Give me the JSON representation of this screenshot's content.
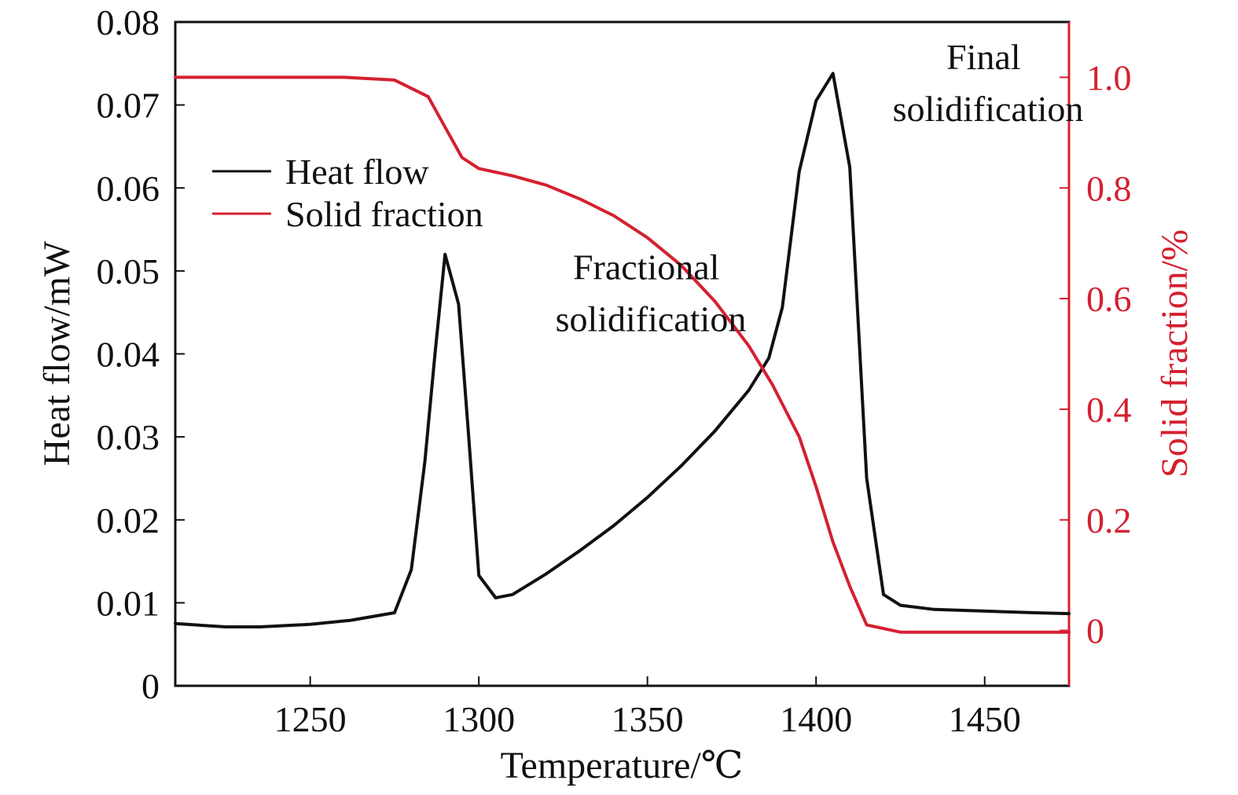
{
  "colors": {
    "heat_flow": "#111111",
    "solid_fraction": "#d42030",
    "axis": "#111111",
    "right_axis": "#d42030"
  },
  "chart_data": {
    "type": "line",
    "title": "",
    "xlabel": "Temperature/℃",
    "ylabel": "Heat flow/mW",
    "y2label": "Solid fraction/%",
    "xlim": [
      1210,
      1475
    ],
    "ylim": [
      0,
      0.08
    ],
    "y2lim": [
      -0.1,
      1.1
    ],
    "x_ticks": [
      1250,
      1300,
      1350,
      1400,
      1450
    ],
    "x_tick_labels": [
      "1250",
      "1300",
      "1350",
      "1400",
      "1450"
    ],
    "y_ticks": [
      0,
      0.01,
      0.02,
      0.03,
      0.04,
      0.05,
      0.06,
      0.07,
      0.08
    ],
    "y_tick_labels": [
      "0",
      "0.01",
      "0.02",
      "0.03",
      "0.04",
      "0.05",
      "0.06",
      "0.07",
      "0.08"
    ],
    "y2_ticks": [
      0,
      0.2,
      0.4,
      0.6,
      0.8,
      1.0
    ],
    "y2_tick_labels": [
      "0",
      "0.2",
      "0.4",
      "0.6",
      "0.8",
      "1.0"
    ],
    "grid": false,
    "legend_position": "upper-left",
    "series": [
      {
        "name": "Heat flow",
        "axis": "left",
        "points": [
          [
            1210,
            0.0075
          ],
          [
            1225,
            0.0071
          ],
          [
            1235,
            0.0071
          ],
          [
            1250,
            0.0074
          ],
          [
            1262,
            0.0079
          ],
          [
            1275,
            0.0088
          ],
          [
            1280,
            0.014
          ],
          [
            1284,
            0.027
          ],
          [
            1287,
            0.04
          ],
          [
            1290,
            0.052
          ],
          [
            1294,
            0.046
          ],
          [
            1297,
            0.03
          ],
          [
            1300,
            0.0133
          ],
          [
            1305,
            0.0106
          ],
          [
            1310,
            0.011
          ],
          [
            1320,
            0.0135
          ],
          [
            1330,
            0.0163
          ],
          [
            1340,
            0.0193
          ],
          [
            1350,
            0.0227
          ],
          [
            1360,
            0.0265
          ],
          [
            1370,
            0.0307
          ],
          [
            1380,
            0.0356
          ],
          [
            1386,
            0.0395
          ],
          [
            1390,
            0.0456
          ],
          [
            1395,
            0.062
          ],
          [
            1400,
            0.0705
          ],
          [
            1405,
            0.0738
          ],
          [
            1410,
            0.0625
          ],
          [
            1415,
            0.025
          ],
          [
            1420,
            0.011
          ],
          [
            1425,
            0.0097
          ],
          [
            1435,
            0.0092
          ],
          [
            1450,
            0.009
          ],
          [
            1465,
            0.0088
          ],
          [
            1475,
            0.0087
          ]
        ]
      },
      {
        "name": "Solid fraction",
        "axis": "right",
        "points": [
          [
            1210,
            1.0
          ],
          [
            1240,
            1.0
          ],
          [
            1260,
            1.0
          ],
          [
            1275,
            0.995
          ],
          [
            1285,
            0.965
          ],
          [
            1290,
            0.91
          ],
          [
            1295,
            0.855
          ],
          [
            1300,
            0.835
          ],
          [
            1310,
            0.822
          ],
          [
            1320,
            0.805
          ],
          [
            1330,
            0.78
          ],
          [
            1340,
            0.75
          ],
          [
            1350,
            0.71
          ],
          [
            1360,
            0.66
          ],
          [
            1370,
            0.595
          ],
          [
            1380,
            0.515
          ],
          [
            1387,
            0.445
          ],
          [
            1395,
            0.35
          ],
          [
            1400,
            0.26
          ],
          [
            1405,
            0.16
          ],
          [
            1410,
            0.08
          ],
          [
            1415,
            0.01
          ],
          [
            1425,
            -0.003
          ],
          [
            1440,
            -0.003
          ],
          [
            1475,
            -0.003
          ]
        ]
      }
    ],
    "annotations": [
      {
        "lines": [
          "Fractional",
          "solidification"
        ],
        "at": [
          1351,
          0.049
        ]
      },
      {
        "lines": [
          "Final",
          "solidification"
        ],
        "at": [
          1451,
          0.0743
        ]
      }
    ]
  }
}
